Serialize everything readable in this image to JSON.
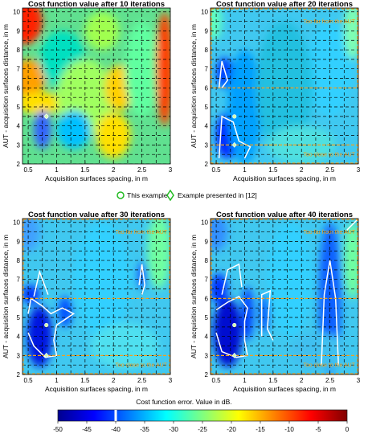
{
  "chart_data": [
    {
      "type": "heatmap",
      "title": "Cost function value after 10 iterations",
      "xlabel": "Acquisition surfaces spacing, in m",
      "ylabel": "AUT - acquisition surfaces distance, in m",
      "xlim": [
        0.4,
        3.0
      ],
      "ylim": [
        2,
        10.2
      ],
      "xticks": [
        0.5,
        1,
        1.5,
        2,
        2.5,
        3
      ],
      "yticks": [
        2,
        3,
        4,
        5,
        6,
        7,
        8,
        9,
        10
      ],
      "annotations": [],
      "markers": {
        "this_example": [
          0.82,
          4.5
        ],
        "example_12": [
          0.82,
          4.5
        ]
      }
    },
    {
      "type": "heatmap",
      "title": "Cost function value after 20 iterations",
      "xlabel": "Acquisition surfaces spacing, in m",
      "ylabel": "AUT - acquisition surfaces distance, in m",
      "xlim": [
        0.4,
        3.0
      ],
      "ylim": [
        2,
        10.2
      ],
      "xticks": [
        0.5,
        1,
        1.5,
        2,
        2.5,
        3
      ],
      "yticks": [
        2,
        3,
        4,
        5,
        6,
        7,
        8,
        9,
        10
      ],
      "annotations": [
        "Too far from the AUT",
        "Too close to the AUT"
      ],
      "markers": {
        "this_example": [
          0.82,
          4.5
        ],
        "example_12": [
          0.82,
          3.0
        ]
      }
    },
    {
      "type": "heatmap",
      "title": "Cost function value after 30 iterations",
      "xlabel": "Acquisition surfaces spacing, in m",
      "ylabel": "AUT - acquisition surfaces distance, in m",
      "xlim": [
        0.4,
        3.0
      ],
      "ylim": [
        2,
        10.2
      ],
      "xticks": [
        0.5,
        1,
        1.5,
        2,
        2.5,
        3
      ],
      "yticks": [
        2,
        3,
        4,
        5,
        6,
        7,
        8,
        9,
        10
      ],
      "annotations": [
        "Too far from the AUT",
        "Too close to the AUT"
      ],
      "markers": {
        "this_example": [
          0.82,
          4.6
        ],
        "example_12": [
          0.82,
          3.0
        ]
      }
    },
    {
      "type": "heatmap",
      "title": "Cost function value after 40 iterations",
      "xlabel": "Acquisition surfaces spacing, in m",
      "ylabel": "AUT - acquisition surfaces distance, in m",
      "xlim": [
        0.4,
        3.0
      ],
      "ylim": [
        2,
        10.2
      ],
      "xticks": [
        0.5,
        1,
        1.5,
        2,
        2.5,
        3
      ],
      "yticks": [
        2,
        3,
        4,
        5,
        6,
        7,
        8,
        9,
        10
      ],
      "annotations": [
        "Too far from the AUT",
        "Too close to the AUT"
      ],
      "markers": {
        "this_example": [
          0.82,
          4.6
        ],
        "example_12": [
          0.82,
          3.0
        ]
      }
    }
  ],
  "legend": {
    "this_example": "This example",
    "example_12": "Example presented in [12]"
  },
  "colorbar": {
    "title": "Cost function error. Value in dB.",
    "min": -50,
    "max": 0,
    "ticks": [
      "-50",
      "-45",
      "-40",
      "-35",
      "-30",
      "-25",
      "-20",
      "-15",
      "-10",
      "-5",
      "0"
    ],
    "marker_value": -40
  },
  "colors": {
    "grid": "#000000",
    "accent_box": "#f0a020",
    "contour": "#ffffff",
    "marker": "#22bb22"
  }
}
